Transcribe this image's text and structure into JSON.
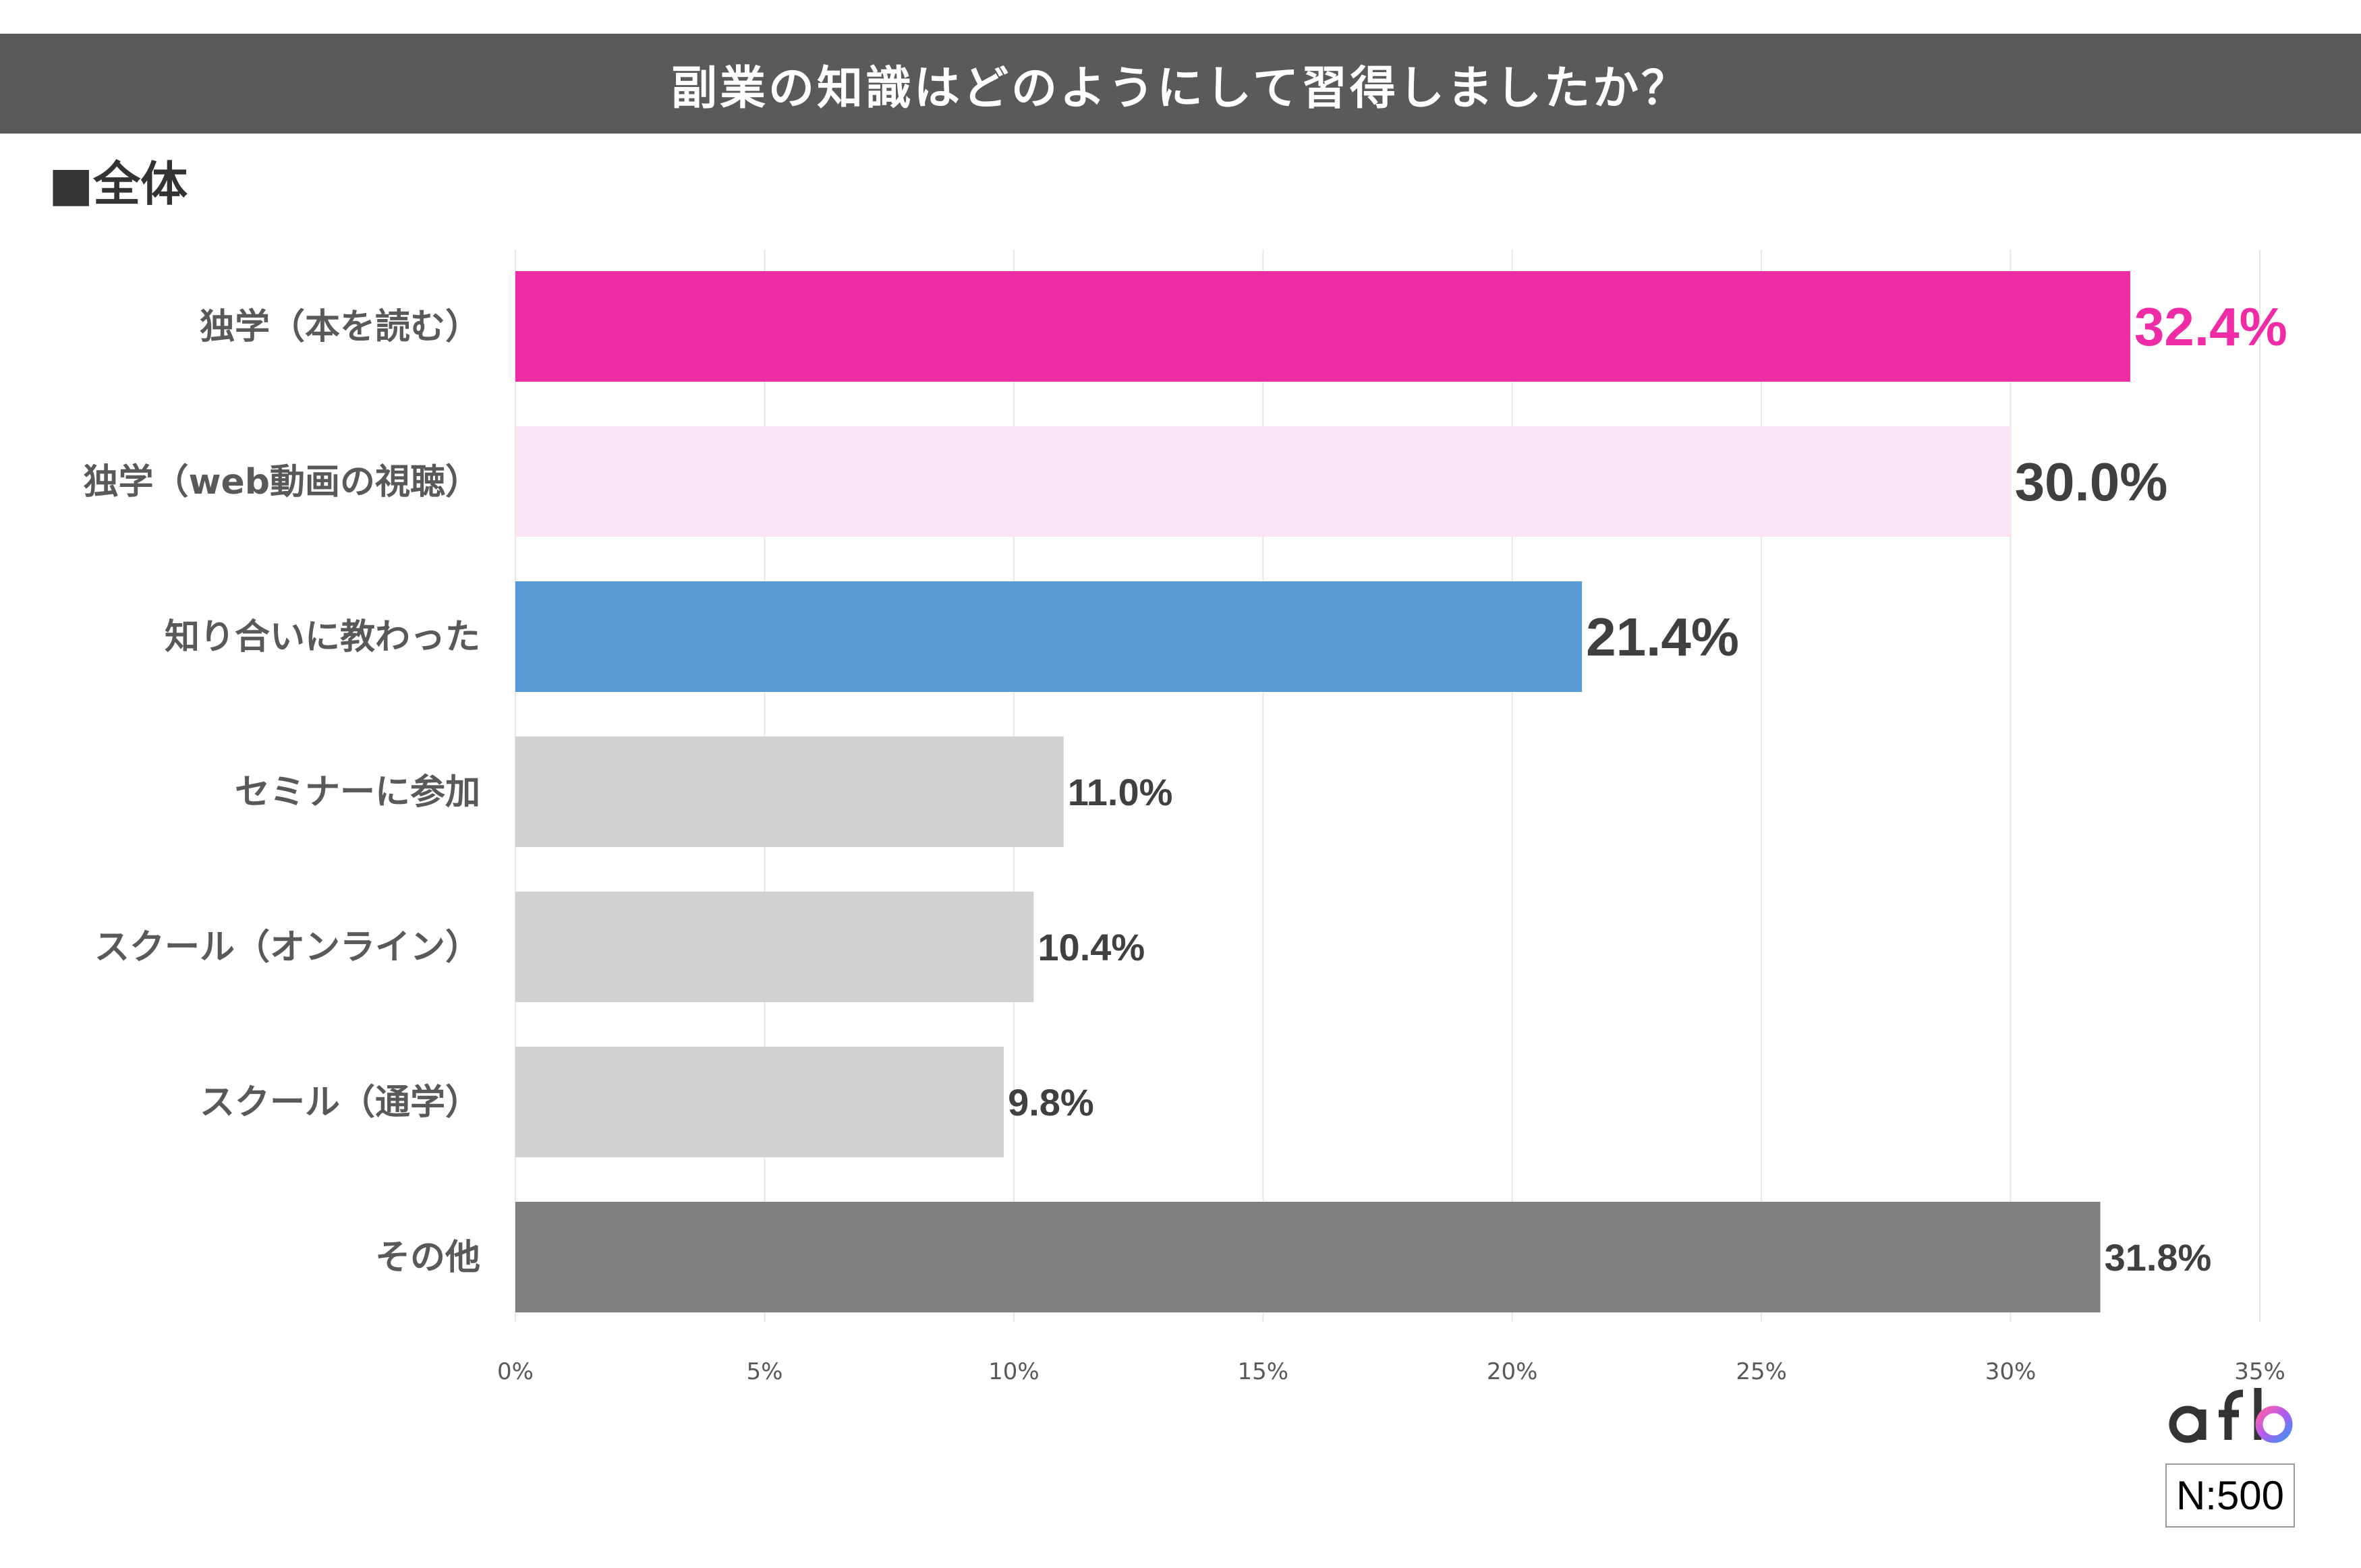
{
  "header": {
    "title": "副業の知識はどのようにして習得しましたか？",
    "subtitle": "■全体"
  },
  "sample": {
    "label": "N:500"
  },
  "logo": {
    "text": "afb",
    "icon": "afb-logo-icon"
  },
  "colors": {
    "title_bar": "#5a5a5a",
    "pink": "#f02ba6",
    "light_pink": "#fde4f5",
    "blue": "#5b9bd5",
    "light_gray": "#d3d0d0",
    "dark_gray": "#7f7f7f",
    "label_dark": "#404040"
  },
  "chart_data": {
    "type": "bar",
    "orientation": "horizontal",
    "title": "副業の知識はどのようにして習得しましたか？",
    "subtitle": "■全体",
    "categories": [
      "独学（本を読む）",
      "独学（web動画の視聴）",
      "知り合いに教わった",
      "セミナーに参加",
      "スクール（オンライン）",
      "スクール（通学）",
      "その他"
    ],
    "values": [
      32.4,
      30.0,
      21.4,
      11.0,
      10.4,
      9.8,
      31.8
    ],
    "value_labels": [
      "32.4%",
      "30.0%",
      "21.4%",
      "11.0%",
      "10.4%",
      "9.8%",
      "31.8%"
    ],
    "bar_colors": [
      "#f02ba6",
      "#fde4f5",
      "#5b9bd5",
      "#d3d0d0",
      "#d3d0d0",
      "#d3d0d0",
      "#7f7f7f"
    ],
    "label_colors": [
      "#f02ba6",
      "#404040",
      "#404040",
      "#404040",
      "#404040",
      "#404040",
      "#404040"
    ],
    "label_emphasis": [
      "large",
      "large",
      "large",
      "normal",
      "normal",
      "normal",
      "normal"
    ],
    "xlim": [
      0,
      35
    ],
    "xticks": [
      0,
      5,
      10,
      15,
      20,
      25,
      30,
      35
    ],
    "xtick_labels": [
      "0%",
      "5%",
      "10%",
      "15%",
      "20%",
      "25%",
      "30%",
      "35%"
    ],
    "grid": true,
    "xlabel": "",
    "ylabel": ""
  }
}
